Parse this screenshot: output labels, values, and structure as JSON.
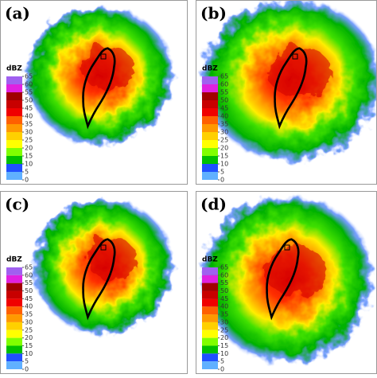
{
  "panels": [
    {
      "label": "(a)",
      "colorbar": {
        "title": "dBZ",
        "ticks": [
          65,
          60,
          55,
          50,
          45,
          40,
          35,
          30,
          25,
          20,
          15,
          10,
          5,
          0
        ],
        "colors": [
          "#a060f0",
          "#e020e0",
          "#a00000",
          "#c80000",
          "#f00000",
          "#ff6000",
          "#ff9900",
          "#ffd000",
          "#ffff00",
          "#80ff00",
          "#00c000",
          "#2050ff",
          "#60b0ff"
        ]
      }
    },
    {
      "label": "(b)",
      "colorbar": {
        "title": "dBZ",
        "ticks": [
          65,
          60,
          55,
          50,
          45,
          40,
          35,
          30,
          25,
          20,
          15,
          10,
          5,
          0
        ],
        "colors": [
          "#a060f0",
          "#e020e0",
          "#a00000",
          "#c80000",
          "#f00000",
          "#ff6000",
          "#ff9900",
          "#ffd000",
          "#ffff00",
          "#80ff00",
          "#00c000",
          "#2050ff",
          "#60b0ff"
        ]
      }
    },
    {
      "label": "(c)",
      "colorbar": {
        "title": "dBZ",
        "ticks": [
          65,
          60,
          55,
          50,
          45,
          40,
          35,
          30,
          25,
          20,
          15,
          10,
          5,
          0
        ],
        "colors": [
          "#a060f0",
          "#e020e0",
          "#a00000",
          "#c80000",
          "#f00000",
          "#ff6000",
          "#ff9900",
          "#ffd000",
          "#ffff00",
          "#80ff00",
          "#00c000",
          "#2050ff",
          "#60b0ff"
        ]
      }
    },
    {
      "label": "(d)",
      "colorbar": {
        "title": "dBZ",
        "ticks": [
          65,
          60,
          55,
          50,
          45,
          40,
          35,
          30,
          25,
          20,
          15,
          10,
          5,
          0
        ],
        "colors": [
          "#a060f0",
          "#e020e0",
          "#a00000",
          "#c80000",
          "#f00000",
          "#ff6000",
          "#ff9900",
          "#ffd000",
          "#ffff00",
          "#80ff00",
          "#00c000",
          "#2050ff",
          "#60b0ff"
        ]
      }
    }
  ]
}
